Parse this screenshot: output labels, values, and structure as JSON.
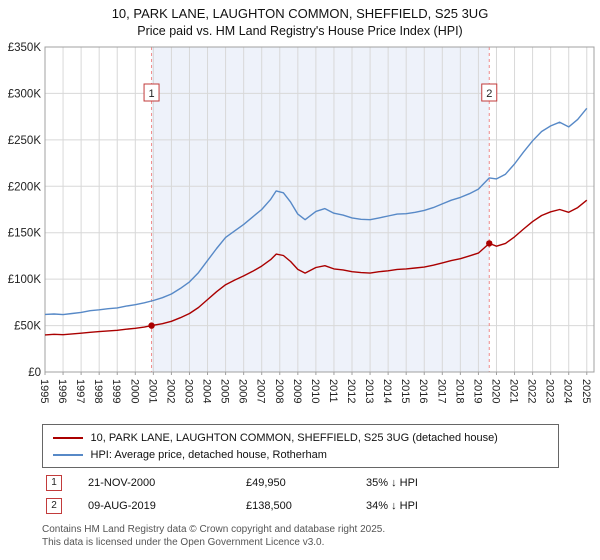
{
  "title": "10, PARK LANE, LAUGHTON COMMON, SHEFFIELD, S25 3UG",
  "subtitle": "Price paid vs. HM Land Registry's House Price Index (HPI)",
  "legend": {
    "property_label": "10, PARK LANE, LAUGHTON COMMON, SHEFFIELD, S25 3UG (detached house)",
    "hpi_label": "HPI: Average price, detached house, Rotherham"
  },
  "annotations": [
    {
      "num": "1",
      "date": "21-NOV-2000",
      "price": "£49,950",
      "hpi": "35% ↓ HPI"
    },
    {
      "num": "2",
      "date": "09-AUG-2019",
      "price": "£138,500",
      "hpi": "34% ↓ HPI"
    }
  ],
  "footer": {
    "line1": "Contains HM Land Registry data © Crown copyright and database right 2025.",
    "line2": "This data is licensed under the Open Government Licence v3.0."
  },
  "colors": {
    "property": "#aa0000",
    "hpi": "#5789c7",
    "band": "#eef2fa",
    "marker_line": "#ef8a8a",
    "marker_box_border": "#c23b3b",
    "grid": "#d8d8d8",
    "frame": "#a0a0a0",
    "tick_text": "#222222"
  },
  "chart_data": {
    "type": "line",
    "title": "10, PARK LANE, LAUGHTON COMMON, SHEFFIELD, S25 3UG",
    "subtitle": "Price paid vs. HM Land Registry's House Price Index (HPI)",
    "x_range": [
      1995,
      2025.4
    ],
    "y_range": [
      0,
      350000
    ],
    "grid": true,
    "legend_position": "bottom",
    "y_ticks": [
      {
        "v": 0,
        "label": "£0"
      },
      {
        "v": 50000,
        "label": "£50K"
      },
      {
        "v": 100000,
        "label": "£100K"
      },
      {
        "v": 150000,
        "label": "£150K"
      },
      {
        "v": 200000,
        "label": "£200K"
      },
      {
        "v": 250000,
        "label": "£250K"
      },
      {
        "v": 300000,
        "label": "£300K"
      },
      {
        "v": 350000,
        "label": "£350K"
      }
    ],
    "x_ticks": [
      1995,
      1996,
      1997,
      1998,
      1999,
      2000,
      2001,
      2002,
      2003,
      2004,
      2005,
      2006,
      2007,
      2008,
      2009,
      2010,
      2011,
      2012,
      2013,
      2014,
      2015,
      2016,
      2017,
      2018,
      2019,
      2020,
      2021,
      2022,
      2023,
      2024,
      2025
    ],
    "series": [
      {
        "name": "HPI: Average price, detached house, Rotherham",
        "color_key": "hpi",
        "points": [
          [
            1995.0,
            62000
          ],
          [
            1995.5,
            62500
          ],
          [
            1996.0,
            61800
          ],
          [
            1996.5,
            63000
          ],
          [
            1997.0,
            64200
          ],
          [
            1997.5,
            66000
          ],
          [
            1998.0,
            67000
          ],
          [
            1998.5,
            68200
          ],
          [
            1999.0,
            69000
          ],
          [
            1999.5,
            71000
          ],
          [
            2000.0,
            72500
          ],
          [
            2000.5,
            74500
          ],
          [
            2001.0,
            77000
          ],
          [
            2001.5,
            80000
          ],
          [
            2002.0,
            84000
          ],
          [
            2002.5,
            90000
          ],
          [
            2003.0,
            97000
          ],
          [
            2003.5,
            107000
          ],
          [
            2004.0,
            120000
          ],
          [
            2004.5,
            133000
          ],
          [
            2005.0,
            145000
          ],
          [
            2005.5,
            152000
          ],
          [
            2006.0,
            159000
          ],
          [
            2006.5,
            167000
          ],
          [
            2007.0,
            175000
          ],
          [
            2007.5,
            186000
          ],
          [
            2007.8,
            195000
          ],
          [
            2008.2,
            193000
          ],
          [
            2008.6,
            183000
          ],
          [
            2009.0,
            170000
          ],
          [
            2009.4,
            164000
          ],
          [
            2010.0,
            173000
          ],
          [
            2010.5,
            176000
          ],
          [
            2011.0,
            171000
          ],
          [
            2011.5,
            169000
          ],
          [
            2012.0,
            166000
          ],
          [
            2012.5,
            164500
          ],
          [
            2013.0,
            164000
          ],
          [
            2013.5,
            166000
          ],
          [
            2014.0,
            168000
          ],
          [
            2014.5,
            170000
          ],
          [
            2015.0,
            170500
          ],
          [
            2015.5,
            172000
          ],
          [
            2016.0,
            174000
          ],
          [
            2016.5,
            177000
          ],
          [
            2017.0,
            181000
          ],
          [
            2017.5,
            185000
          ],
          [
            2018.0,
            188000
          ],
          [
            2018.5,
            192000
          ],
          [
            2019.0,
            197000
          ],
          [
            2019.6,
            209000
          ],
          [
            2020.0,
            208000
          ],
          [
            2020.5,
            213000
          ],
          [
            2021.0,
            224000
          ],
          [
            2021.5,
            237000
          ],
          [
            2022.0,
            249000
          ],
          [
            2022.5,
            259000
          ],
          [
            2023.0,
            265000
          ],
          [
            2023.5,
            269000
          ],
          [
            2024.0,
            264000
          ],
          [
            2024.5,
            272000
          ],
          [
            2025.0,
            284000
          ]
        ]
      },
      {
        "name": "10, PARK LANE, LAUGHTON COMMON, SHEFFIELD, S25 3UG (detached house)",
        "color_key": "property",
        "points": [
          [
            1995.0,
            40000
          ],
          [
            1995.5,
            40600
          ],
          [
            1996.0,
            40200
          ],
          [
            1996.5,
            41000
          ],
          [
            1997.0,
            41800
          ],
          [
            1997.5,
            42800
          ],
          [
            1998.0,
            43500
          ],
          [
            1998.5,
            44300
          ],
          [
            1999.0,
            44900
          ],
          [
            1999.5,
            46100
          ],
          [
            2000.0,
            47100
          ],
          [
            2000.5,
            48400
          ],
          [
            2000.9,
            49950
          ],
          [
            2001.5,
            52000
          ],
          [
            2002.0,
            54600
          ],
          [
            2002.5,
            58500
          ],
          [
            2003.0,
            63000
          ],
          [
            2003.5,
            69500
          ],
          [
            2004.0,
            78000
          ],
          [
            2004.5,
            86500
          ],
          [
            2005.0,
            94000
          ],
          [
            2005.5,
            99000
          ],
          [
            2006.0,
            103500
          ],
          [
            2006.5,
            108500
          ],
          [
            2007.0,
            114000
          ],
          [
            2007.5,
            121000
          ],
          [
            2007.8,
            127000
          ],
          [
            2008.2,
            125500
          ],
          [
            2008.6,
            119000
          ],
          [
            2009.0,
            110500
          ],
          [
            2009.4,
            106500
          ],
          [
            2010.0,
            112500
          ],
          [
            2010.5,
            114500
          ],
          [
            2011.0,
            111000
          ],
          [
            2011.5,
            110000
          ],
          [
            2012.0,
            108000
          ],
          [
            2012.5,
            107000
          ],
          [
            2013.0,
            106500
          ],
          [
            2013.5,
            108000
          ],
          [
            2014.0,
            109000
          ],
          [
            2014.5,
            110500
          ],
          [
            2015.0,
            111000
          ],
          [
            2015.5,
            112000
          ],
          [
            2016.0,
            113000
          ],
          [
            2016.5,
            115000
          ],
          [
            2017.0,
            117500
          ],
          [
            2017.5,
            120000
          ],
          [
            2018.0,
            122000
          ],
          [
            2018.5,
            125000
          ],
          [
            2019.0,
            128000
          ],
          [
            2019.6,
            138500
          ],
          [
            2020.0,
            135500
          ],
          [
            2020.5,
            138500
          ],
          [
            2021.0,
            145500
          ],
          [
            2021.5,
            154000
          ],
          [
            2022.0,
            162000
          ],
          [
            2022.5,
            168500
          ],
          [
            2023.0,
            172500
          ],
          [
            2023.5,
            175000
          ],
          [
            2024.0,
            172000
          ],
          [
            2024.5,
            177000
          ],
          [
            2025.0,
            185000
          ]
        ]
      }
    ],
    "markers": [
      {
        "label": "1",
        "x": 2000.9,
        "y": 49950
      },
      {
        "label": "2",
        "x": 2019.6,
        "y": 138500
      }
    ]
  }
}
